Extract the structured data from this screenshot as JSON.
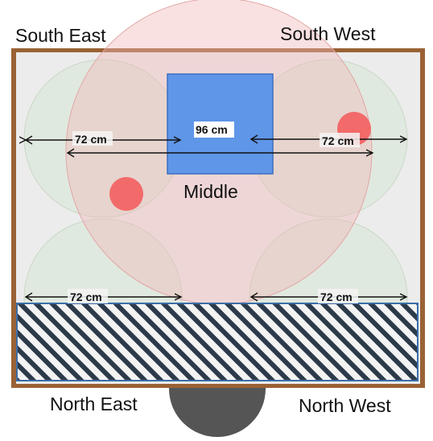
{
  "labels": {
    "south_east": "South East",
    "south_west": "South West",
    "north_east": "North East",
    "north_west": "North West",
    "middle": "Middle"
  },
  "dimensions": {
    "top_left": "72 cm",
    "top_right": "72 cm",
    "bottom_left": "72 cm",
    "bottom_right": "72 cm",
    "center": "96 cm"
  },
  "colors": {
    "wall": "#9a6235",
    "room_floor": "#ececec",
    "big_circle": "#f0b8b8",
    "corner_circle": "#d7e8d5",
    "blue_square": "#5f96e8",
    "red_dot": "#f26a6a",
    "hatch": "#2c3a4a",
    "door": "#555555"
  }
}
